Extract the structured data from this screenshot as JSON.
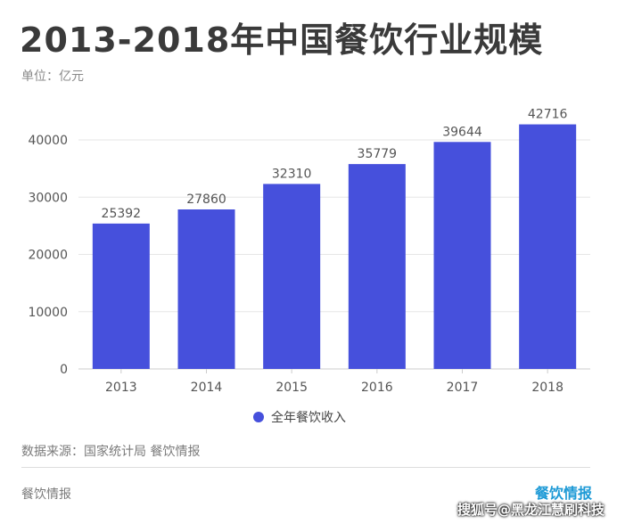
{
  "header": {
    "title": "2013-2018年中国餐饮行业规模",
    "unit": "单位：亿元"
  },
  "legend": {
    "label": "全年餐饮收入",
    "color": "#4650dc"
  },
  "footer": {
    "source": "数据来源：国家统计局 餐饮情报",
    "left": "餐饮情报",
    "logo": "餐饮情报",
    "credit": "搜狐号@黑龙江慧刷科技"
  },
  "chart_data": {
    "type": "bar",
    "title": "2013-2018年中国餐饮行业规模",
    "ylabel": "单位：亿元",
    "xlabel": "",
    "categories": [
      "2013",
      "2014",
      "2015",
      "2016",
      "2017",
      "2018"
    ],
    "series": [
      {
        "name": "全年餐饮收入",
        "values": [
          25392,
          27860,
          32310,
          35779,
          39644,
          42716
        ]
      }
    ],
    "ylim": [
      0,
      40000
    ],
    "yticks": [
      0,
      10000,
      20000,
      30000,
      40000
    ],
    "grid": true,
    "legend_position": "bottom",
    "bar_color": "#4650dc"
  }
}
